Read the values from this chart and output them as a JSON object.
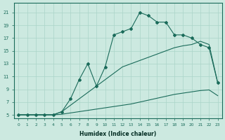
{
  "xlabel": "Humidex (Indice chaleur)",
  "ylabel": "",
  "bg_color": "#cce9e0",
  "line_color": "#1a6b5a",
  "grid_color": "#aad4c8",
  "xlim": [
    -0.5,
    23.5
  ],
  "ylim": [
    4.5,
    22.5
  ],
  "xticks": [
    0,
    1,
    2,
    3,
    4,
    5,
    6,
    7,
    8,
    9,
    10,
    11,
    12,
    13,
    14,
    15,
    16,
    17,
    18,
    19,
    20,
    21,
    22,
    23
  ],
  "yticks": [
    5,
    7,
    9,
    11,
    13,
    15,
    17,
    19,
    21
  ],
  "line_jagged_x": [
    0,
    1,
    2,
    3,
    4,
    5,
    6,
    7,
    8,
    9,
    10,
    11,
    12,
    13,
    14,
    15,
    16,
    17,
    18,
    19,
    20,
    21,
    22,
    23
  ],
  "line_jagged_y": [
    5,
    5,
    5,
    5,
    5,
    5.5,
    7.5,
    10.5,
    13,
    9.5,
    12.5,
    17.5,
    18,
    18.5,
    21,
    20.5,
    19.5,
    19.5,
    17.5,
    17.5,
    17,
    16,
    15.5,
    10
  ],
  "line_mid_x": [
    0,
    1,
    2,
    3,
    4,
    5,
    6,
    7,
    8,
    9,
    10,
    11,
    12,
    13,
    14,
    15,
    16,
    17,
    18,
    19,
    20,
    21,
    22,
    23
  ],
  "line_mid_y": [
    5,
    5,
    5,
    5,
    5,
    5.5,
    6.5,
    7.5,
    8.5,
    9.5,
    10.5,
    11.5,
    12.5,
    13,
    13.5,
    14,
    14.5,
    15,
    15.5,
    15.8,
    16,
    16.5,
    16,
    10
  ],
  "line_low_x": [
    0,
    1,
    2,
    3,
    4,
    5,
    6,
    7,
    8,
    9,
    10,
    11,
    12,
    13,
    14,
    15,
    16,
    17,
    18,
    19,
    20,
    21,
    22,
    23
  ],
  "line_low_y": [
    5,
    5,
    5,
    5,
    5,
    5.1,
    5.3,
    5.5,
    5.7,
    5.9,
    6.1,
    6.3,
    6.5,
    6.7,
    7.0,
    7.3,
    7.6,
    7.9,
    8.2,
    8.4,
    8.6,
    8.8,
    8.9,
    8
  ]
}
